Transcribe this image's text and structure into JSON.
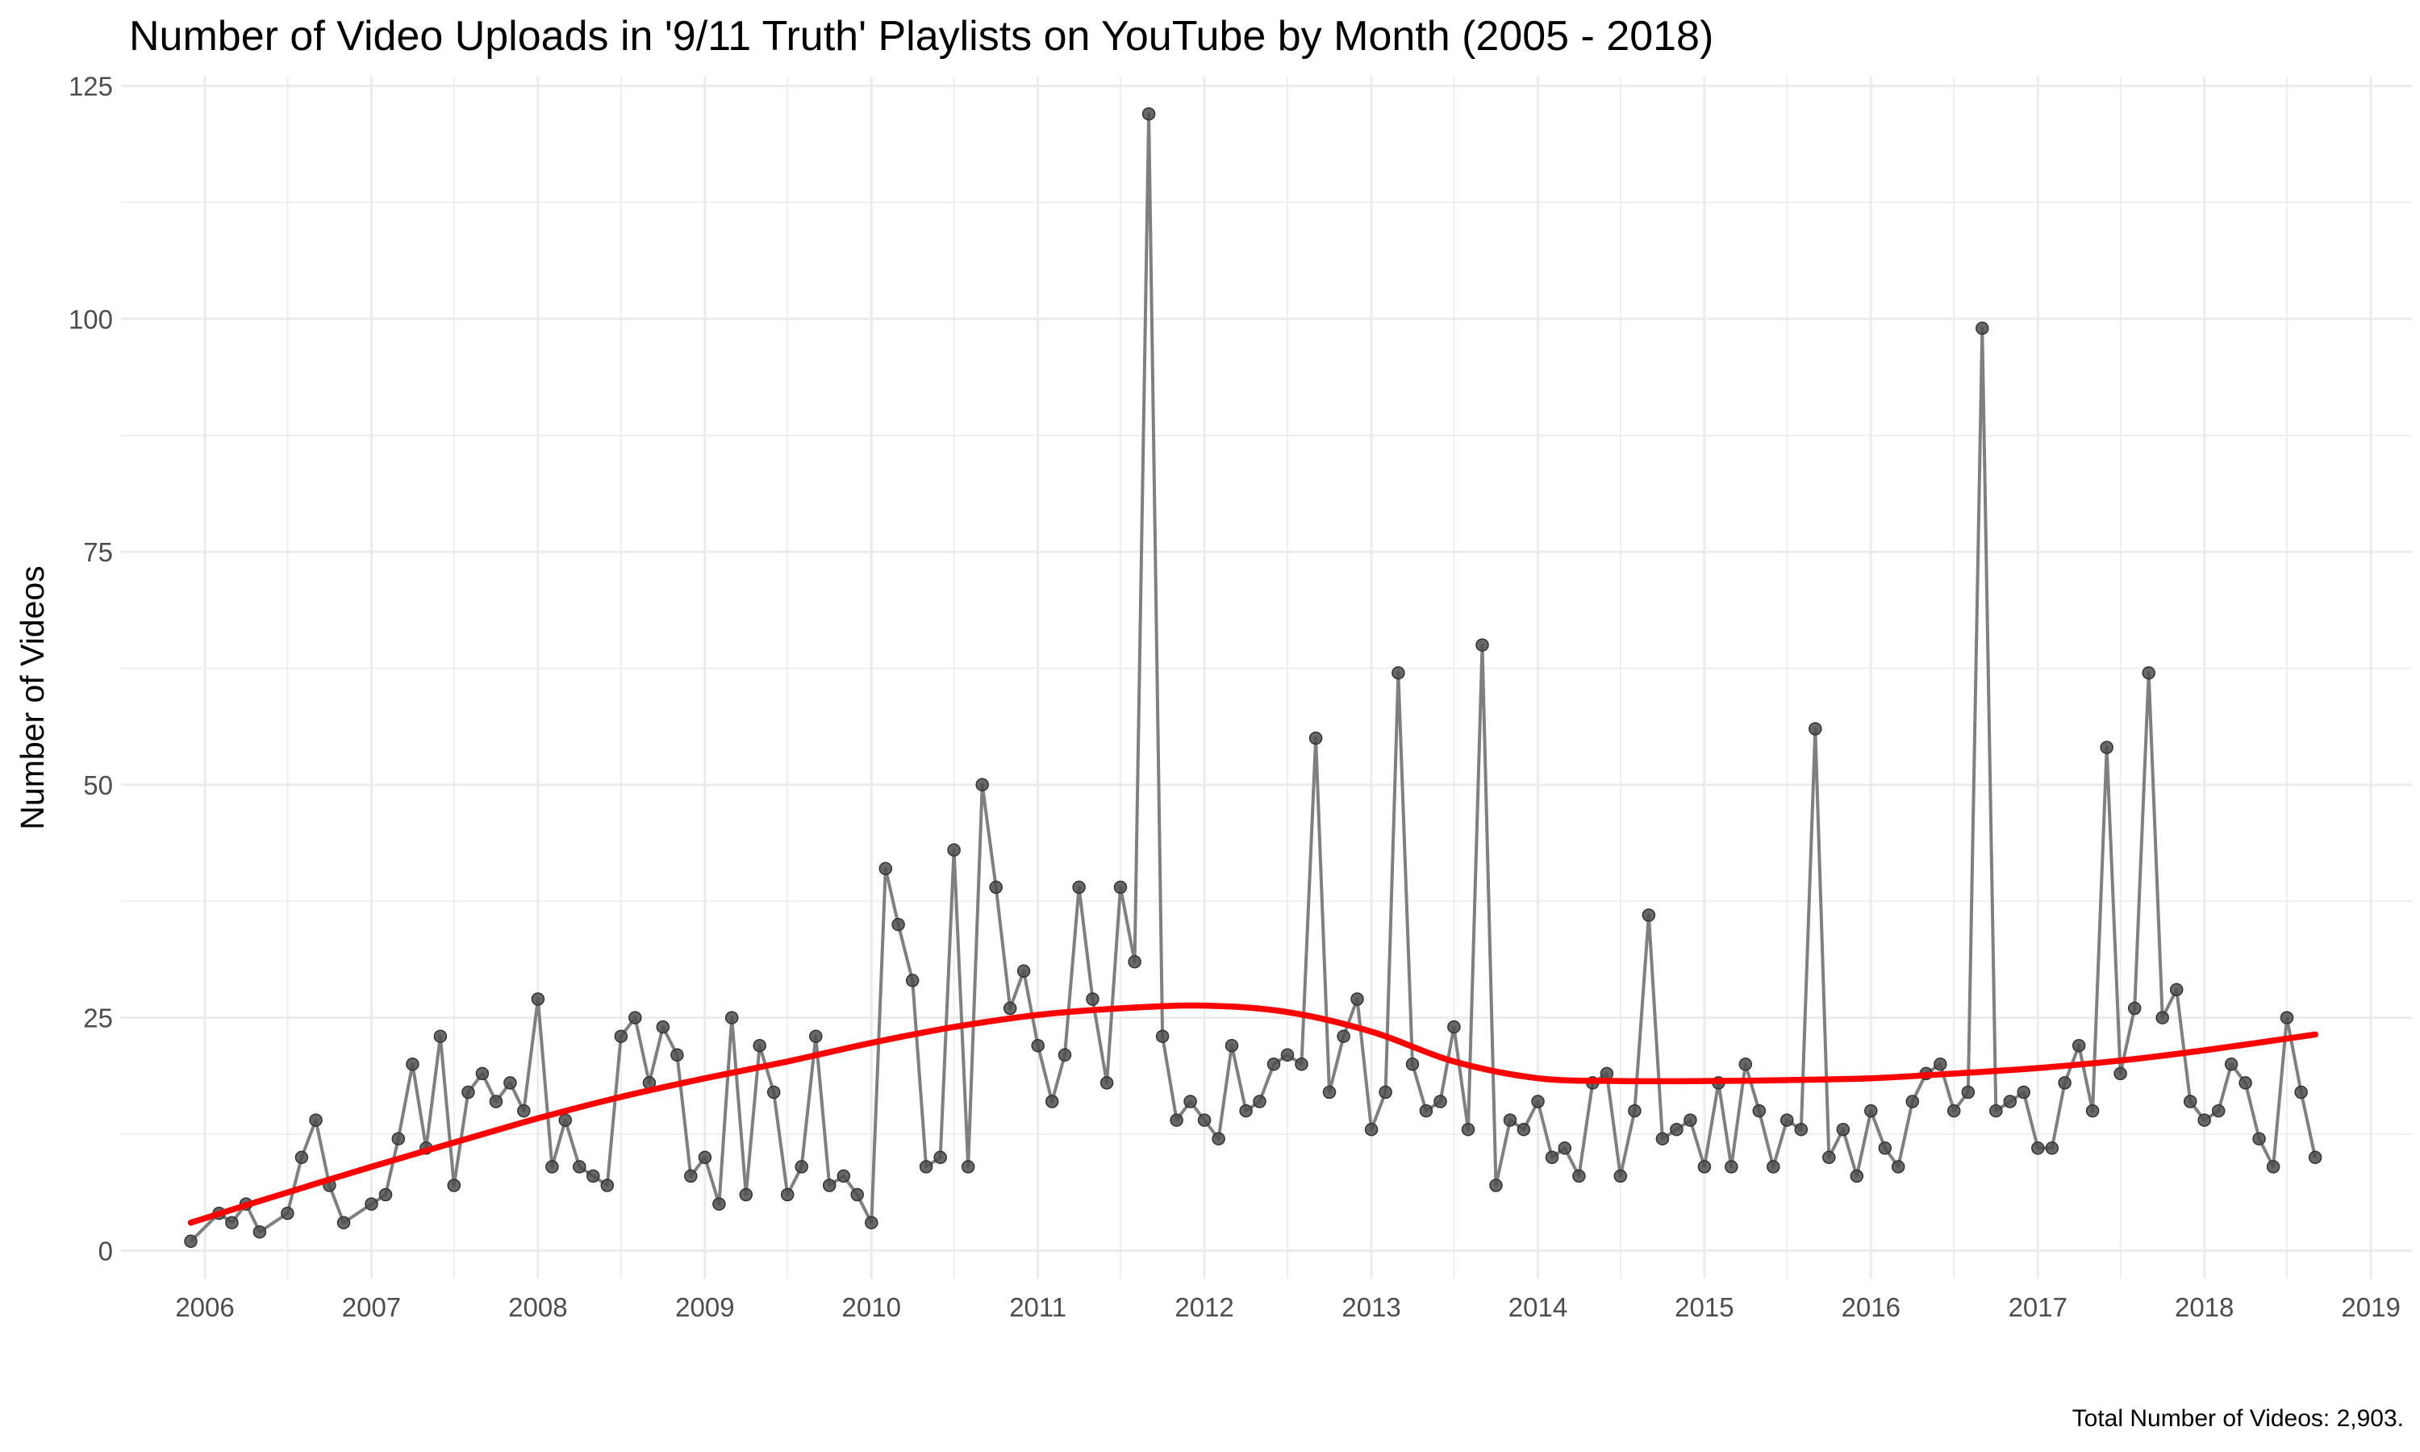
{
  "chart_data": {
    "type": "line",
    "title": "Number of Video Uploads in '9/11 Truth' Playlists on YouTube by Month (2005 - 2018)",
    "ylabel": "Number of Videos",
    "xlabel": "",
    "caption": "Total Number of Videos: 2,903.",
    "x_axis": "date",
    "xlim": [
      "2005-07-01",
      "2019-04-01"
    ],
    "ylim": [
      -3,
      126
    ],
    "x_ticks": [
      "2006",
      "2007",
      "2008",
      "2009",
      "2010",
      "2011",
      "2012",
      "2013",
      "2014",
      "2015",
      "2016",
      "2017",
      "2018",
      "2019"
    ],
    "y_ticks": [
      0,
      25,
      50,
      75,
      100,
      125
    ],
    "y_tick_labels": [
      "0",
      "25",
      "50",
      "75",
      "100",
      "125"
    ],
    "grid": true,
    "legend": "none",
    "colors": {
      "line": "#7f7f7f",
      "point": "#4d4d4d",
      "trend": "#ff0000",
      "grid": "#ebebeb"
    },
    "series": [
      {
        "values": [
          [
            "2005-12",
            1
          ],
          [
            "2006-02",
            4
          ],
          [
            "2006-03",
            3
          ],
          [
            "2006-04",
            5
          ],
          [
            "2006-05",
            2
          ],
          [
            "2006-07",
            4
          ],
          [
            "2006-08",
            10
          ],
          [
            "2006-09",
            14
          ],
          [
            "2006-10",
            7
          ],
          [
            "2006-11",
            3
          ],
          [
            "2007-01",
            5
          ],
          [
            "2007-02",
            6
          ],
          [
            "2007-03",
            12
          ],
          [
            "2007-04",
            20
          ],
          [
            "2007-05",
            11
          ],
          [
            "2007-06",
            23
          ],
          [
            "2007-07",
            7
          ],
          [
            "2007-08",
            17
          ],
          [
            "2007-09",
            19
          ],
          [
            "2007-10",
            16
          ],
          [
            "2007-11",
            18
          ],
          [
            "2007-12",
            15
          ],
          [
            "2008-01",
            27
          ],
          [
            "2008-02",
            9
          ],
          [
            "2008-03",
            14
          ],
          [
            "2008-04",
            9
          ],
          [
            "2008-05",
            8
          ],
          [
            "2008-06",
            7
          ],
          [
            "2008-07",
            23
          ],
          [
            "2008-08",
            25
          ],
          [
            "2008-09",
            18
          ],
          [
            "2008-10",
            24
          ],
          [
            "2008-11",
            21
          ],
          [
            "2008-12",
            8
          ],
          [
            "2009-01",
            10
          ],
          [
            "2009-02",
            5
          ],
          [
            "2009-03",
            25
          ],
          [
            "2009-04",
            6
          ],
          [
            "2009-05",
            22
          ],
          [
            "2009-06",
            17
          ],
          [
            "2009-07",
            6
          ],
          [
            "2009-08",
            9
          ],
          [
            "2009-09",
            23
          ],
          [
            "2009-10",
            7
          ],
          [
            "2009-11",
            8
          ],
          [
            "2009-12",
            6
          ],
          [
            "2010-01",
            3
          ],
          [
            "2010-02",
            41
          ],
          [
            "2010-03",
            35
          ],
          [
            "2010-04",
            29
          ],
          [
            "2010-05",
            9
          ],
          [
            "2010-06",
            10
          ],
          [
            "2010-07",
            43
          ],
          [
            "2010-08",
            9
          ],
          [
            "2010-09",
            50
          ],
          [
            "2010-10",
            39
          ],
          [
            "2010-11",
            26
          ],
          [
            "2010-12",
            30
          ],
          [
            "2011-01",
            22
          ],
          [
            "2011-02",
            16
          ],
          [
            "2011-03",
            21
          ],
          [
            "2011-04",
            39
          ],
          [
            "2011-05",
            27
          ],
          [
            "2011-06",
            18
          ],
          [
            "2011-07",
            39
          ],
          [
            "2011-08",
            31
          ],
          [
            "2011-09",
            122
          ],
          [
            "2011-10",
            23
          ],
          [
            "2011-11",
            14
          ],
          [
            "2011-12",
            16
          ],
          [
            "2012-01",
            14
          ],
          [
            "2012-02",
            12
          ],
          [
            "2012-03",
            22
          ],
          [
            "2012-04",
            15
          ],
          [
            "2012-05",
            16
          ],
          [
            "2012-06",
            20
          ],
          [
            "2012-07",
            21
          ],
          [
            "2012-08",
            20
          ],
          [
            "2012-09",
            55
          ],
          [
            "2012-10",
            17
          ],
          [
            "2012-11",
            23
          ],
          [
            "2012-12",
            27
          ],
          [
            "2013-01",
            13
          ],
          [
            "2013-02",
            17
          ],
          [
            "2013-03",
            62
          ],
          [
            "2013-04",
            20
          ],
          [
            "2013-05",
            15
          ],
          [
            "2013-06",
            16
          ],
          [
            "2013-07",
            24
          ],
          [
            "2013-08",
            13
          ],
          [
            "2013-09",
            65
          ],
          [
            "2013-10",
            7
          ],
          [
            "2013-11",
            14
          ],
          [
            "2013-12",
            13
          ],
          [
            "2014-01",
            16
          ],
          [
            "2014-02",
            10
          ],
          [
            "2014-03",
            11
          ],
          [
            "2014-04",
            8
          ],
          [
            "2014-05",
            18
          ],
          [
            "2014-06",
            19
          ],
          [
            "2014-07",
            8
          ],
          [
            "2014-08",
            15
          ],
          [
            "2014-09",
            36
          ],
          [
            "2014-10",
            12
          ],
          [
            "2014-11",
            13
          ],
          [
            "2014-12",
            14
          ],
          [
            "2015-01",
            9
          ],
          [
            "2015-02",
            18
          ],
          [
            "2015-03",
            9
          ],
          [
            "2015-04",
            20
          ],
          [
            "2015-05",
            15
          ],
          [
            "2015-06",
            9
          ],
          [
            "2015-07",
            14
          ],
          [
            "2015-08",
            13
          ],
          [
            "2015-09",
            56
          ],
          [
            "2015-10",
            10
          ],
          [
            "2015-11",
            13
          ],
          [
            "2015-12",
            8
          ],
          [
            "2016-01",
            15
          ],
          [
            "2016-02",
            11
          ],
          [
            "2016-03",
            9
          ],
          [
            "2016-04",
            16
          ],
          [
            "2016-05",
            19
          ],
          [
            "2016-06",
            20
          ],
          [
            "2016-07",
            15
          ],
          [
            "2016-08",
            17
          ],
          [
            "2016-09",
            99
          ],
          [
            "2016-10",
            15
          ],
          [
            "2016-11",
            16
          ],
          [
            "2016-12",
            17
          ],
          [
            "2017-01",
            11
          ],
          [
            "2017-02",
            11
          ],
          [
            "2017-03",
            18
          ],
          [
            "2017-04",
            22
          ],
          [
            "2017-05",
            15
          ],
          [
            "2017-06",
            54
          ],
          [
            "2017-07",
            19
          ],
          [
            "2017-08",
            26
          ],
          [
            "2017-09",
            62
          ],
          [
            "2017-10",
            25
          ],
          [
            "2017-11",
            28
          ],
          [
            "2017-12",
            16
          ],
          [
            "2018-01",
            14
          ],
          [
            "2018-02",
            15
          ],
          [
            "2018-03",
            20
          ],
          [
            "2018-04",
            18
          ],
          [
            "2018-05",
            12
          ],
          [
            "2018-06",
            9
          ],
          [
            "2018-07",
            25
          ],
          [
            "2018-08",
            17
          ],
          [
            "2018-09",
            10
          ]
        ]
      },
      {
        "style": "smooth-trend",
        "values": [
          [
            "2005-12",
            3.0
          ],
          [
            "2006-06",
            5.8
          ],
          [
            "2007-01",
            9.0
          ],
          [
            "2007-07",
            11.6
          ],
          [
            "2008-01",
            14.2
          ],
          [
            "2008-07",
            16.5
          ],
          [
            "2009-01",
            18.5
          ],
          [
            "2009-07",
            20.3
          ],
          [
            "2010-01",
            22.3
          ],
          [
            "2010-07",
            24.0
          ],
          [
            "2011-01",
            25.3
          ],
          [
            "2011-07",
            26.0
          ],
          [
            "2012-01",
            26.3
          ],
          [
            "2012-07",
            25.6
          ],
          [
            "2013-01",
            23.5
          ],
          [
            "2013-07",
            20.3
          ],
          [
            "2014-01",
            18.5
          ],
          [
            "2014-07",
            18.2
          ],
          [
            "2015-01",
            18.2
          ],
          [
            "2015-07",
            18.3
          ],
          [
            "2016-01",
            18.5
          ],
          [
            "2016-07",
            19.0
          ],
          [
            "2017-01",
            19.6
          ],
          [
            "2017-07",
            20.4
          ],
          [
            "2018-01",
            21.5
          ],
          [
            "2018-09",
            23.2
          ]
        ]
      }
    ]
  }
}
